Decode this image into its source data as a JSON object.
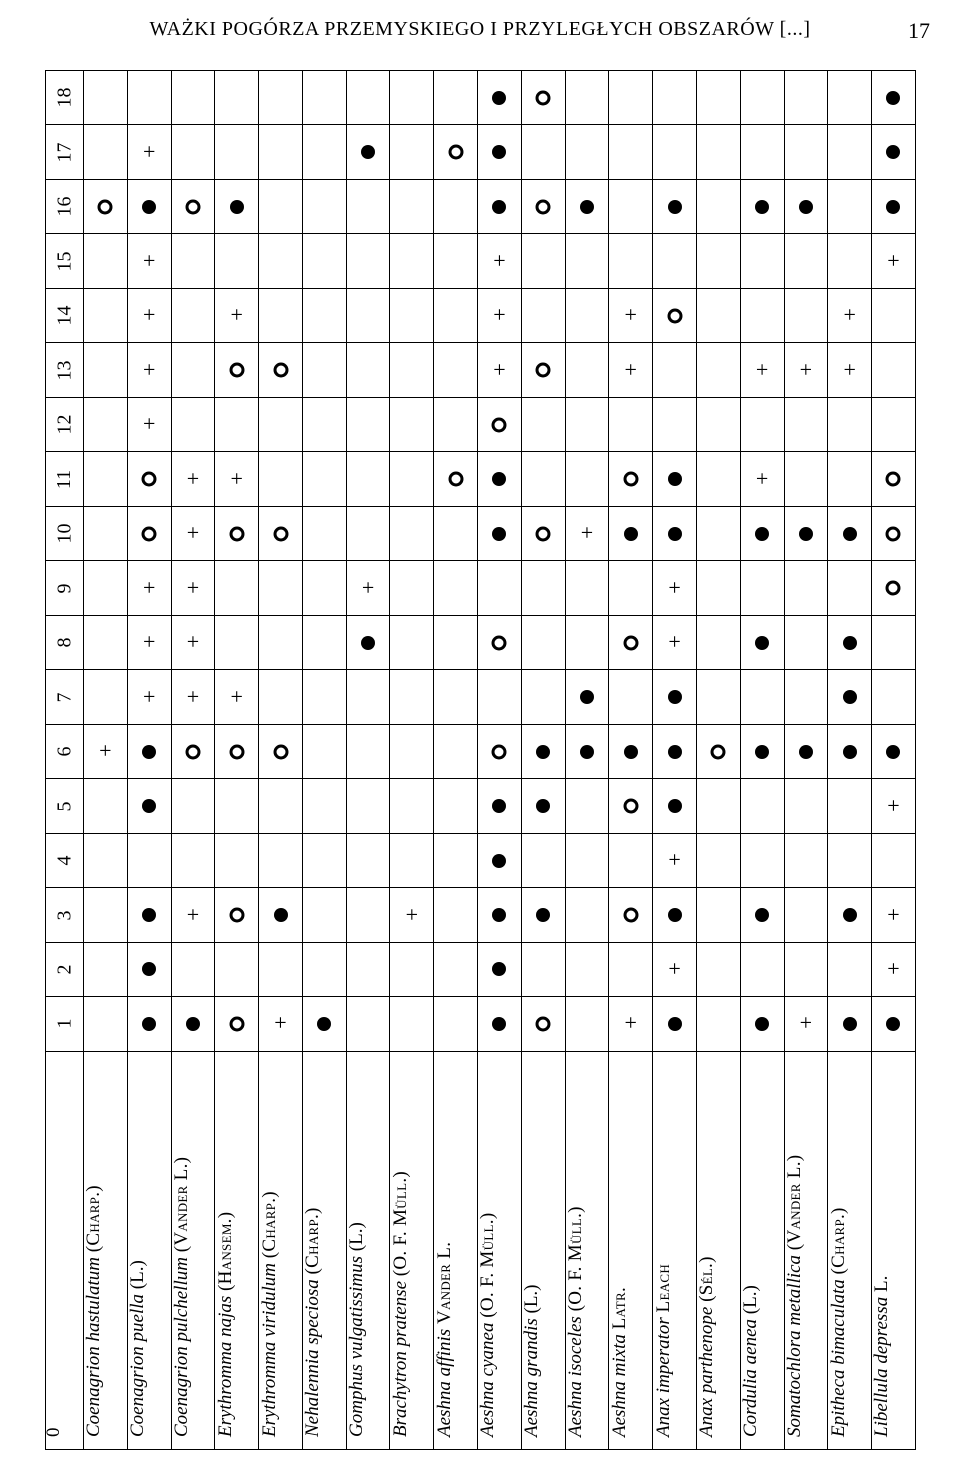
{
  "header_text": "WAŻKI POGÓRZA PRZEMYSKIEGO I PRZYLEGŁYCH OBSZARÓW [...]",
  "page_number": "17",
  "column_zero_label": "0",
  "row_labels": [
    "18",
    "17",
    "16",
    "15",
    "14",
    "13",
    "12",
    "11",
    "10",
    "9",
    "8",
    "7",
    "6",
    "5",
    "4",
    "3",
    "2",
    "1"
  ],
  "species": [
    {
      "italic": "Coenagrion hastulatum ",
      "sc": "(Charp.)",
      "post": ""
    },
    {
      "italic": "Coenagrion puella ",
      "sc": "",
      "post": "(L.)"
    },
    {
      "italic": "Coenagrion pulchellum ",
      "sc": "(Vander L.)",
      "post": ""
    },
    {
      "italic": "Erythromma najas ",
      "sc": "(Hansem.)",
      "post": ""
    },
    {
      "italic": "Erythromma viridulum ",
      "sc": "(Charp.)",
      "post": ""
    },
    {
      "italic": "Nehalennia speciosa ",
      "sc": "(Charp.)",
      "post": ""
    },
    {
      "italic": "Gomphus vulgatissimus ",
      "sc": "",
      "post": "(L.)"
    },
    {
      "italic": "Brachytron pratense ",
      "sc": "(O. F. Müll.)",
      "post": ""
    },
    {
      "italic": "Aeshna affinis ",
      "sc": "Vander L.",
      "post": ""
    },
    {
      "italic": "Aeshna cyanea ",
      "sc": "(O. F. Müll.)",
      "post": ""
    },
    {
      "italic": "Aeshna grandis ",
      "sc": "",
      "post": "(L.)"
    },
    {
      "italic": "Aeshna isoceles ",
      "sc": "(O. F. Müll.)",
      "post": ""
    },
    {
      "italic": "Aeshna mixta ",
      "sc": "Latr.",
      "post": ""
    },
    {
      "italic": "Anax imperator ",
      "sc": "Leach",
      "post": ""
    },
    {
      "italic": "Anax parthenope ",
      "sc": "(Sél.)",
      "post": ""
    },
    {
      "italic": "Cordulia aenea ",
      "sc": "",
      "post": "(L.)"
    },
    {
      "italic": "Somatochlora metallica ",
      "sc": "(Vander L.)",
      "post": ""
    },
    {
      "italic": "Epitheca bimaculata ",
      "sc": "(Charp.)",
      "post": ""
    },
    {
      "italic": "Libellula depressa ",
      "sc": "",
      "post": "L."
    }
  ],
  "symbols": {
    "f": "filled",
    "o": "open",
    "p": "plus",
    "": "blank"
  },
  "matrix": [
    [
      "",
      "",
      "",
      "",
      "",
      "",
      "",
      "",
      "",
      "f",
      "o",
      "",
      "",
      "",
      "",
      "",
      "",
      "",
      "f"
    ],
    [
      "",
      "p",
      "",
      "",
      "",
      "",
      "f",
      "",
      "o",
      "f",
      "",
      "",
      "",
      "",
      "",
      "",
      "",
      "",
      "f"
    ],
    [
      "o",
      "f",
      "o",
      "f",
      "",
      "",
      "",
      "",
      "",
      "f",
      "o",
      "f",
      "",
      "f",
      "",
      "f",
      "f",
      "",
      "f"
    ],
    [
      "",
      "p",
      "",
      "",
      "",
      "",
      "",
      "",
      "",
      "p",
      "",
      "",
      "",
      "",
      "",
      "",
      "",
      "",
      "p"
    ],
    [
      "",
      "p",
      "",
      "p",
      "",
      "",
      "",
      "",
      "",
      "p",
      "",
      "",
      "p",
      "o",
      "",
      "",
      "",
      "p",
      ""
    ],
    [
      "",
      "p",
      "",
      "o",
      "o",
      "",
      "",
      "",
      "",
      "p",
      "o",
      "",
      "p",
      "",
      "",
      "p",
      "p",
      "p",
      ""
    ],
    [
      "",
      "p",
      "",
      "",
      "",
      "",
      "",
      "",
      "",
      "o",
      "",
      "",
      "",
      "",
      "",
      "",
      "",
      "",
      ""
    ],
    [
      "",
      "o",
      "p",
      "p",
      "",
      "",
      "",
      "",
      "o",
      "f",
      "",
      "",
      "o",
      "f",
      "",
      "p",
      "",
      "",
      "o"
    ],
    [
      "",
      "o",
      "p",
      "o",
      "o",
      "",
      "",
      "",
      "",
      "f",
      "o",
      "p",
      "f",
      "f",
      "",
      "f",
      "f",
      "f",
      "o"
    ],
    [
      "",
      "p",
      "p",
      "",
      "",
      "",
      "p",
      "",
      "",
      "",
      "",
      "",
      "",
      "p",
      "",
      "",
      "",
      "",
      "o"
    ],
    [
      "",
      "p",
      "p",
      "",
      "",
      "",
      "f",
      "",
      "",
      "o",
      "",
      "",
      "o",
      "p",
      "",
      "f",
      "",
      "f",
      ""
    ],
    [
      "",
      "p",
      "p",
      "p",
      "",
      "",
      "",
      "",
      "",
      "",
      "",
      "f",
      "",
      "f",
      "",
      "",
      "",
      "f",
      ""
    ],
    [
      "p",
      "f",
      "o",
      "o",
      "o",
      "",
      "",
      "",
      "",
      "o",
      "f",
      "f",
      "f",
      "f",
      "o",
      "f",
      "f",
      "f",
      "f"
    ],
    [
      "",
      "f",
      "",
      "",
      "",
      "",
      "",
      "",
      "",
      "f",
      "f",
      "",
      "o",
      "f",
      "",
      "",
      "",
      "",
      "p"
    ],
    [
      "",
      "",
      "",
      "",
      "",
      "",
      "",
      "",
      "",
      "f",
      "",
      "",
      "",
      "p",
      "",
      "",
      "",
      "",
      ""
    ],
    [
      "",
      "f",
      "p",
      "o",
      "f",
      "",
      "",
      "p",
      "",
      "f",
      "f",
      "",
      "o",
      "f",
      "",
      "f",
      "",
      "f",
      "p"
    ],
    [
      "",
      "f",
      "",
      "",
      "",
      "",
      "",
      "",
      "",
      "f",
      "",
      "",
      "",
      "p",
      "",
      "",
      "",
      "",
      "p"
    ],
    [
      "",
      "f",
      "f",
      "o",
      "p",
      "f",
      "",
      "",
      "",
      "f",
      "o",
      "",
      "p",
      "f",
      "",
      "f",
      "p",
      "f",
      "f"
    ]
  ],
  "style": {
    "filled_radius": 7,
    "open_radius": 7,
    "open_stroke": 3,
    "color": "#000000",
    "bg": "#ffffff",
    "plus_fontsize": 22
  }
}
